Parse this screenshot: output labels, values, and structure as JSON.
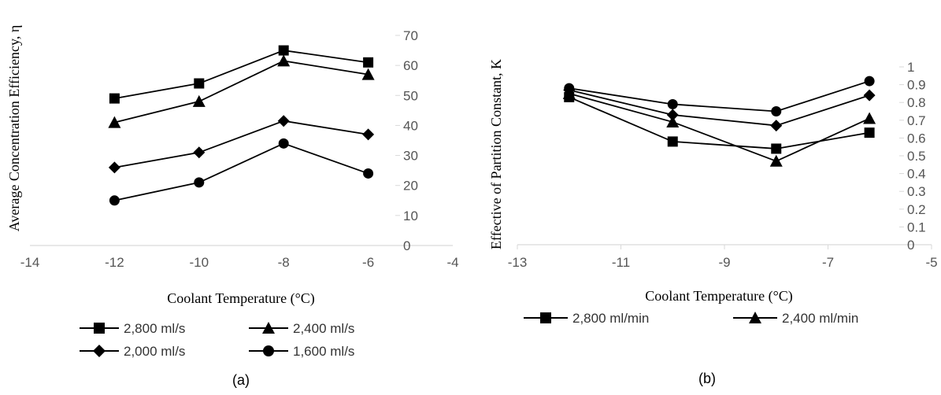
{
  "chart_data": [
    {
      "type": "line",
      "caption": "(a)",
      "title": "",
      "xlabel": "Coolant Temperature (°C)",
      "ylabel": "Average Concentration Efficiency, η",
      "xlim": [
        -14,
        -4
      ],
      "ylim": [
        0,
        70
      ],
      "x_ticks": [
        "-14",
        "-12",
        "-10",
        "-8",
        "-6",
        "-4"
      ],
      "y_ticks": [
        "0",
        "10",
        "20",
        "30",
        "40",
        "50",
        "60",
        "70"
      ],
      "y_axis_side": "right",
      "legend_position": "bottom",
      "x": [
        -12,
        -10,
        -8,
        -6
      ],
      "series": [
        {
          "name": "2,800 ml/s",
          "marker": "square",
          "values": [
            49,
            54,
            65,
            61
          ]
        },
        {
          "name": "2,400 ml/s",
          "marker": "triangle",
          "values": [
            41,
            48,
            61.5,
            57
          ]
        },
        {
          "name": "2,000 ml/s",
          "marker": "diamond",
          "values": [
            26,
            31,
            41.5,
            37
          ]
        },
        {
          "name": "1,600 ml/s",
          "marker": "circle",
          "values": [
            15,
            21,
            34,
            24
          ]
        }
      ]
    },
    {
      "type": "line",
      "caption": "(b)",
      "title": "",
      "xlabel": "Coolant Temperature (°C)",
      "ylabel": "Effective of Partition Constant, K",
      "xlim": [
        -13,
        -5
      ],
      "ylim": [
        0,
        1
      ],
      "x_ticks": [
        "-13",
        "-11",
        "-9",
        "-7",
        "-5"
      ],
      "y_ticks": [
        "0",
        "0.1",
        "0.2",
        "0.3",
        "0.4",
        "0.5",
        "0.6",
        "0.7",
        "0.8",
        "0.9",
        "1"
      ],
      "y_axis_side": "right",
      "legend_position": "bottom",
      "x": [
        -12,
        -10,
        -8,
        -6.2
      ],
      "series": [
        {
          "name": "2,800 ml/min",
          "marker": "square",
          "values": [
            0.83,
            0.58,
            0.54,
            0.63
          ]
        },
        {
          "name": "2,400 ml/min",
          "marker": "triangle",
          "values": [
            0.85,
            0.69,
            0.47,
            0.71
          ]
        },
        {
          "name": "",
          "marker": "diamond",
          "values": [
            0.87,
            0.73,
            0.67,
            0.84
          ]
        },
        {
          "name": "",
          "marker": "circle",
          "values": [
            0.88,
            0.79,
            0.75,
            0.92
          ]
        }
      ]
    }
  ],
  "colors": {
    "series": "#000000",
    "axis": "#d9d9d9",
    "tick": "#555555"
  }
}
